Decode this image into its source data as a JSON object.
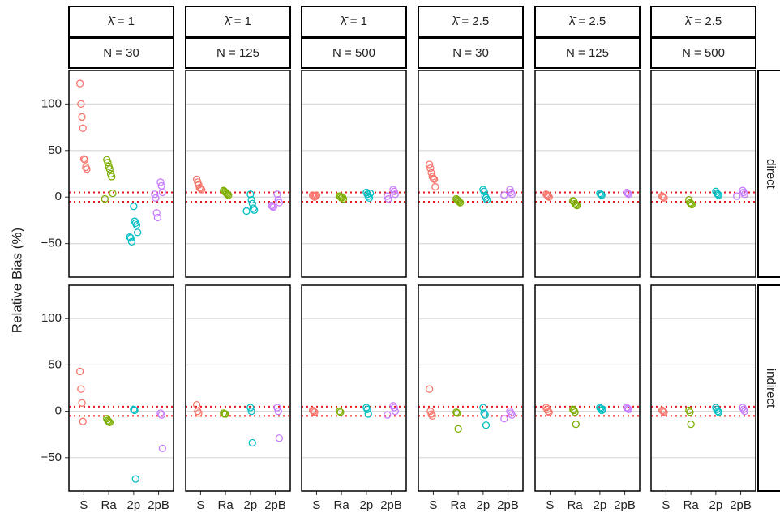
{
  "chart_data": {
    "type": "scatter",
    "ylabel": "Relative Bias (%)",
    "categories": [
      "S",
      "Ra",
      "2p",
      "2pB"
    ],
    "colors": [
      "#f8766d",
      "#7cae00",
      "#00bfc4",
      "#c77cff"
    ],
    "ylim": [
      -86,
      136
    ],
    "yticks": [
      {
        "value": -50,
        "label": "−50"
      },
      0,
      50,
      100
    ],
    "grid": true,
    "reference_lines": [
      -5,
      5
    ],
    "reference_color": "#e41a1c",
    "columns": [
      {
        "lambda": "λ̄ = 1",
        "n": "N = 30"
      },
      {
        "lambda": "λ̄ = 1",
        "n": "N = 125"
      },
      {
        "lambda": "λ̄ = 1",
        "n": "N = 500"
      },
      {
        "lambda": "λ̄ = 2.5",
        "n": "N = 30"
      },
      {
        "lambda": "λ̄ = 2.5",
        "n": "N = 125"
      },
      {
        "lambda": "λ̄ = 2.5",
        "n": "N = 500"
      }
    ],
    "rows": [
      "direct",
      "indirect"
    ],
    "panels": [
      [
        [
          [
            122,
            100,
            86,
            74,
            41,
            40,
            32,
            30
          ],
          [
            40,
            37,
            33,
            30,
            25,
            22,
            4,
            -2
          ],
          [
            -10,
            -26,
            -28,
            -30,
            -38,
            -43,
            -44,
            -48
          ],
          [
            16,
            12,
            5,
            3,
            -1,
            -17,
            -22
          ]
        ],
        [
          [
            19,
            16,
            13,
            10,
            9,
            8
          ],
          [
            7,
            6,
            5,
            4,
            3,
            2
          ],
          [
            3,
            -3,
            -7,
            -12,
            -14,
            -15
          ],
          [
            3,
            -3,
            -6,
            -9,
            -10,
            -11
          ]
        ],
        [
          [
            2,
            1,
            0,
            1,
            2
          ],
          [
            1,
            0,
            -1,
            0,
            -2
          ],
          [
            5,
            3,
            1,
            -1,
            4
          ],
          [
            8,
            6,
            3,
            1,
            -2
          ]
        ],
        [
          [
            35,
            31,
            26,
            22,
            20,
            19,
            11
          ],
          [
            -2,
            -3,
            -4,
            -5,
            -6
          ],
          [
            8,
            6,
            1,
            -1,
            -3
          ],
          [
            8,
            5,
            3,
            2
          ]
        ],
        [
          [
            3,
            2,
            1,
            0
          ],
          [
            -4,
            -5,
            -7,
            -8,
            -9
          ],
          [
            4,
            3,
            2
          ],
          [
            5,
            4,
            3
          ]
        ],
        [
          [
            1,
            0,
            -1
          ],
          [
            -3,
            -6,
            -7,
            -8
          ],
          [
            6,
            4,
            3,
            2
          ],
          [
            7,
            5,
            3,
            1
          ]
        ]
      ],
      [
        [
          [
            43,
            24,
            9,
            -11
          ],
          [
            -8,
            -10,
            -11,
            -12
          ],
          [
            2,
            1,
            -73
          ],
          [
            -2,
            -4,
            -40
          ]
        ],
        [
          [
            7,
            0,
            -2
          ],
          [
            -2,
            -3,
            -3
          ],
          [
            4,
            0,
            -34
          ],
          [
            4,
            0,
            -29
          ]
        ],
        [
          [
            1,
            0,
            -1
          ],
          [
            0,
            -1
          ],
          [
            4,
            2,
            -3
          ],
          [
            6,
            4,
            0,
            -4
          ]
        ],
        [
          [
            24,
            0,
            -3,
            -5
          ],
          [
            -1,
            -2,
            -19
          ],
          [
            4,
            -2,
            -4,
            -15
          ],
          [
            0,
            -2,
            -4,
            -8
          ]
        ],
        [
          [
            4,
            2,
            0,
            -1
          ],
          [
            2,
            1,
            -1,
            -14
          ],
          [
            4,
            3,
            1,
            2
          ],
          [
            4,
            3,
            2
          ]
        ],
        [
          [
            1,
            0,
            -1
          ],
          [
            1,
            -1,
            -14
          ],
          [
            4,
            2,
            0,
            -1
          ],
          [
            4,
            2,
            0
          ]
        ]
      ]
    ]
  }
}
